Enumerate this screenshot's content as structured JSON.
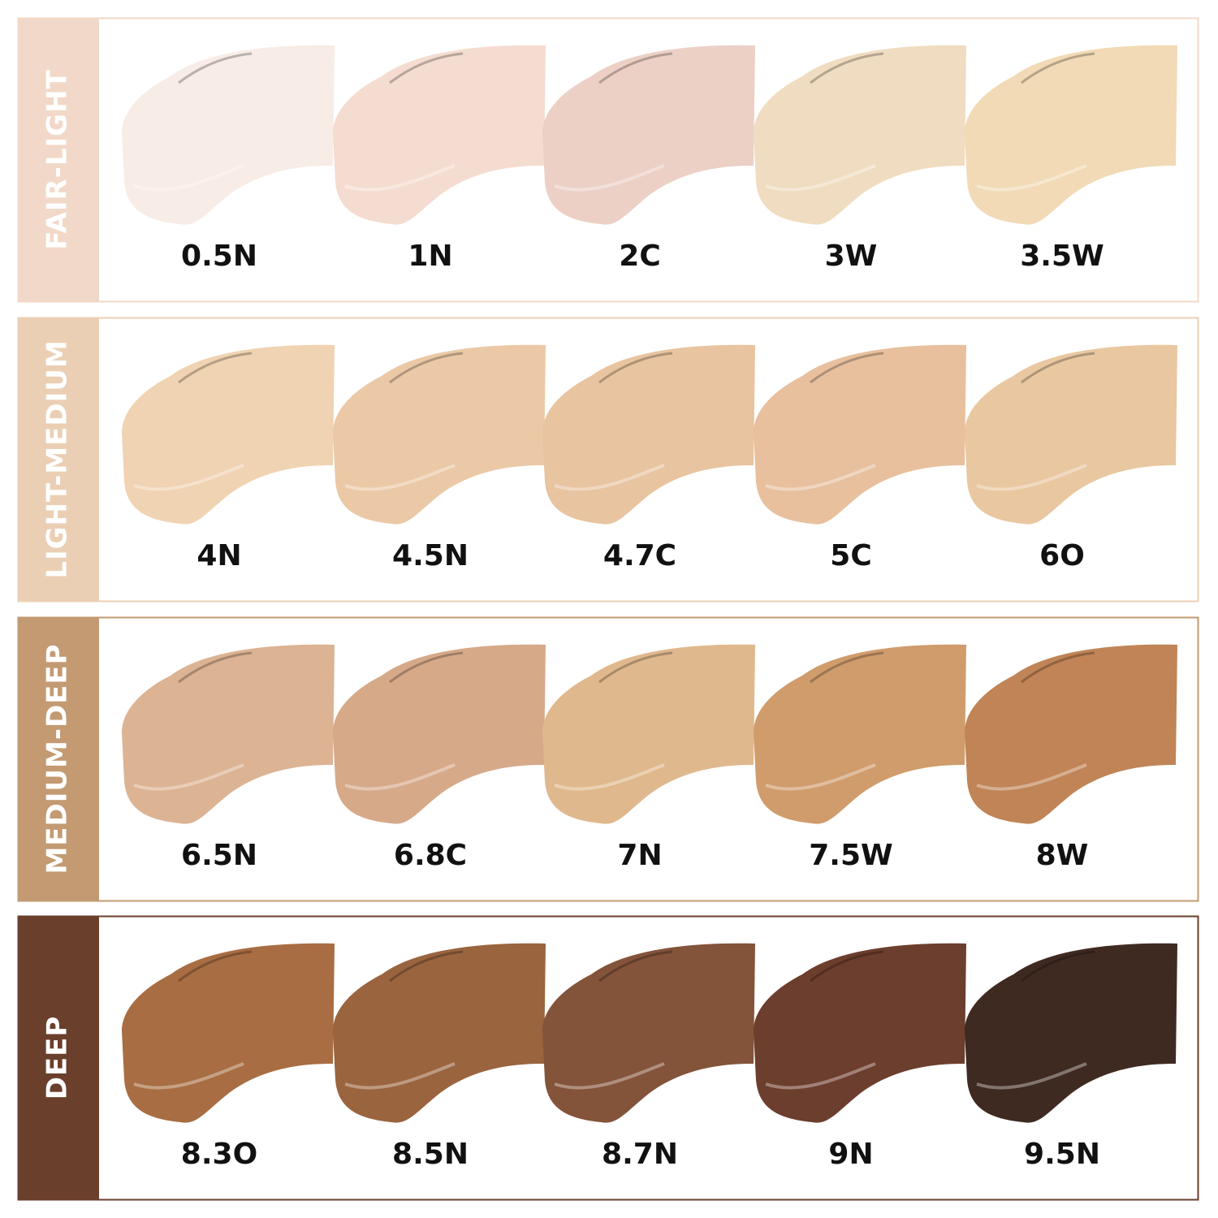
{
  "groups": [
    {
      "label": "FAIR-LIGHT",
      "color": "#f2d8c8",
      "shades": [
        {
          "name": "0.5N",
          "color": "#f8ece6"
        },
        {
          "name": "1N",
          "color": "#f5dcd0"
        },
        {
          "name": "2C",
          "color": "#ecd0c6"
        },
        {
          "name": "3W",
          "color": "#f0dcc0"
        },
        {
          "name": "3.5W",
          "color": "#f1dab5"
        }
      ]
    },
    {
      "label": "LIGHT-MEDIUM",
      "color": "#ebcfb5",
      "shades": [
        {
          "name": "4N",
          "color": "#f0d3b2"
        },
        {
          "name": "4.5N",
          "color": "#ebc9a6"
        },
        {
          "name": "4.7C",
          "color": "#e8c4a0"
        },
        {
          "name": "5C",
          "color": "#e8c09e"
        },
        {
          "name": "6O",
          "color": "#e9c7a0"
        }
      ]
    },
    {
      "label": "MEDIUM-DEEP",
      "color": "#c39a72",
      "shades": [
        {
          "name": "6.5N",
          "color": "#dcb393"
        },
        {
          "name": "6.8C",
          "color": "#d6a989"
        },
        {
          "name": "7N",
          "color": "#e0b88d"
        },
        {
          "name": "7.5W",
          "color": "#d09c6c"
        },
        {
          "name": "8W",
          "color": "#c08456"
        }
      ]
    },
    {
      "label": "DEEP",
      "color": "#6a3f2b",
      "shades": [
        {
          "name": "8.3O",
          "color": "#a86d42"
        },
        {
          "name": "8.5N",
          "color": "#9a643f"
        },
        {
          "name": "8.7N",
          "color": "#83533a"
        },
        {
          "name": "9N",
          "color": "#6c3e2d"
        },
        {
          "name": "9.5N",
          "color": "#3f2a22"
        }
      ]
    }
  ]
}
